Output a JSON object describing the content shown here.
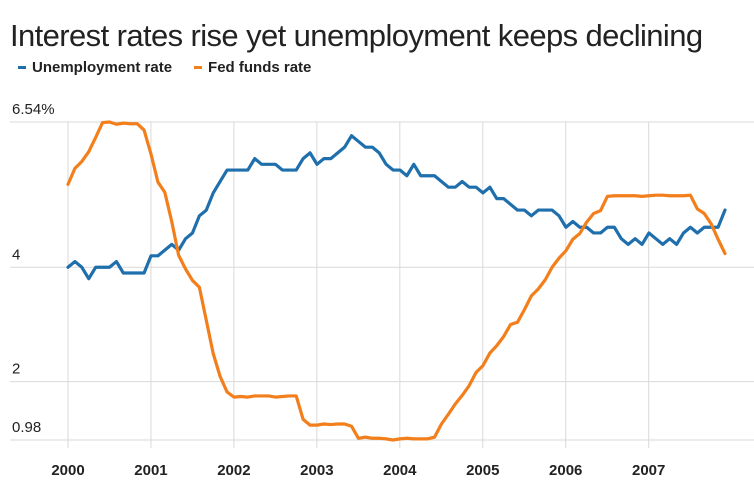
{
  "title": "Interest rates rise yet unemployment keeps declining",
  "legend": [
    {
      "label": "Unemployment rate",
      "color": "#1f6fad"
    },
    {
      "label": "Fed funds rate",
      "color": "#f27f1b"
    }
  ],
  "chart_data": {
    "type": "line",
    "title": "Interest rates rise yet unemployment keeps declining",
    "xlabel": "",
    "ylabel": "",
    "x_ticks": [
      "2000",
      "2001",
      "2002",
      "2003",
      "2004",
      "2005",
      "2006",
      "2007"
    ],
    "y_ticks": [
      {
        "value": 6.54,
        "label": "6.54%"
      },
      {
        "value": 4,
        "label": "4"
      },
      {
        "value": 2,
        "label": "2"
      },
      {
        "value": 0.98,
        "label": "0.98"
      }
    ],
    "ylim": [
      0.98,
      6.54
    ],
    "xlim": [
      2000,
      2007.92
    ],
    "grid": true,
    "legend_position": "top-left",
    "series": [
      {
        "name": "Unemployment rate",
        "color": "#1f6fad",
        "values": [
          4.0,
          4.1,
          4.0,
          3.8,
          4.0,
          4.0,
          4.0,
          4.1,
          3.9,
          3.9,
          3.9,
          3.9,
          4.2,
          4.2,
          4.3,
          4.4,
          4.3,
          4.5,
          4.6,
          4.9,
          5.0,
          5.3,
          5.5,
          5.7,
          5.7,
          5.7,
          5.7,
          5.9,
          5.8,
          5.8,
          5.8,
          5.7,
          5.7,
          5.7,
          5.9,
          6.0,
          5.8,
          5.9,
          5.9,
          6.0,
          6.1,
          6.3,
          6.2,
          6.1,
          6.1,
          6.0,
          5.8,
          5.7,
          5.7,
          5.6,
          5.8,
          5.6,
          5.6,
          5.6,
          5.5,
          5.4,
          5.4,
          5.5,
          5.4,
          5.4,
          5.3,
          5.4,
          5.2,
          5.2,
          5.1,
          5.0,
          5.0,
          4.9,
          5.0,
          5.0,
          5.0,
          4.9,
          4.7,
          4.8,
          4.7,
          4.7,
          4.6,
          4.6,
          4.7,
          4.7,
          4.5,
          4.4,
          4.5,
          4.4,
          4.6,
          4.5,
          4.4,
          4.5,
          4.4,
          4.6,
          4.7,
          4.6,
          4.7,
          4.7,
          4.7,
          5.0
        ]
      },
      {
        "name": "Fed funds rate",
        "color": "#f27f1b",
        "values": [
          5.45,
          5.73,
          5.85,
          6.02,
          6.27,
          6.53,
          6.54,
          6.5,
          6.52,
          6.51,
          6.51,
          6.4,
          5.98,
          5.49,
          5.31,
          4.8,
          4.21,
          3.97,
          3.77,
          3.65,
          3.07,
          2.49,
          2.09,
          1.82,
          1.73,
          1.74,
          1.73,
          1.75,
          1.75,
          1.75,
          1.73,
          1.74,
          1.75,
          1.75,
          1.34,
          1.24,
          1.24,
          1.26,
          1.25,
          1.26,
          1.26,
          1.22,
          1.01,
          1.03,
          1.01,
          1.01,
          1.0,
          0.98,
          1.0,
          1.01,
          1.0,
          1.0,
          1.0,
          1.03,
          1.26,
          1.43,
          1.61,
          1.76,
          1.93,
          2.16,
          2.28,
          2.5,
          2.63,
          2.79,
          3.0,
          3.04,
          3.26,
          3.5,
          3.62,
          3.78,
          4.0,
          4.16,
          4.29,
          4.49,
          4.59,
          4.79,
          4.94,
          4.99,
          5.24,
          5.25,
          5.25,
          5.25,
          5.25,
          5.24,
          5.25,
          5.26,
          5.26,
          5.25,
          5.25,
          5.25,
          5.26,
          5.02,
          4.94,
          4.76,
          4.49,
          4.24
        ]
      }
    ]
  }
}
